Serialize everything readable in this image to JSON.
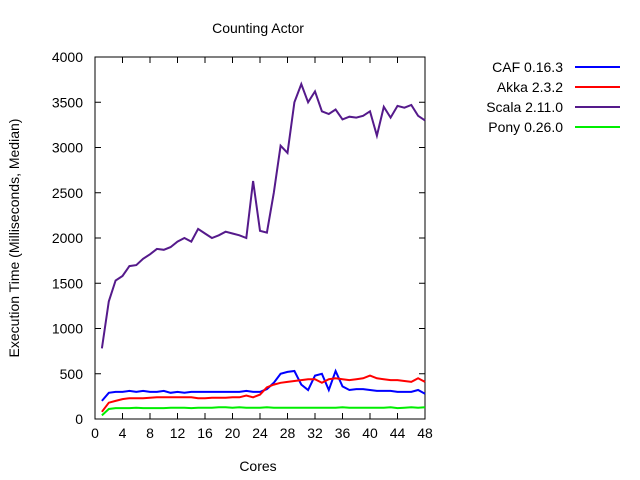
{
  "chart_data": {
    "type": "line",
    "title": "Counting Actor",
    "xlabel": "Cores",
    "ylabel": "Execution Time (Milliseconds, Median)",
    "xlim": [
      0,
      48
    ],
    "ylim": [
      0,
      4000
    ],
    "xticks": [
      0,
      4,
      8,
      12,
      16,
      20,
      24,
      28,
      32,
      36,
      40,
      44,
      48
    ],
    "yticks": [
      0,
      500,
      1000,
      1500,
      2000,
      2500,
      3000,
      3500,
      4000
    ],
    "legend_position": "outside-top-right",
    "x": [
      1,
      2,
      3,
      4,
      5,
      6,
      7,
      8,
      9,
      10,
      11,
      12,
      13,
      14,
      15,
      16,
      17,
      18,
      19,
      20,
      21,
      22,
      23,
      24,
      25,
      26,
      27,
      28,
      29,
      30,
      31,
      32,
      33,
      34,
      35,
      36,
      37,
      38,
      39,
      40,
      41,
      42,
      43,
      44,
      45,
      46,
      47,
      48
    ],
    "series": [
      {
        "name": "CAF 0.16.3",
        "color": "#0000ff",
        "values": [
          200,
          290,
          300,
          300,
          310,
          300,
          310,
          300,
          300,
          310,
          290,
          300,
          290,
          300,
          300,
          300,
          300,
          300,
          300,
          300,
          300,
          310,
          300,
          300,
          330,
          400,
          500,
          520,
          530,
          380,
          320,
          480,
          500,
          320,
          530,
          360,
          320,
          330,
          330,
          320,
          310,
          310,
          310,
          300,
          300,
          300,
          320,
          280
        ]
      },
      {
        "name": "Akka 2.3.2",
        "color": "#ff0000",
        "values": [
          80,
          180,
          200,
          220,
          230,
          230,
          230,
          235,
          240,
          240,
          240,
          240,
          240,
          240,
          230,
          230,
          235,
          235,
          235,
          240,
          240,
          260,
          240,
          270,
          350,
          380,
          400,
          410,
          420,
          430,
          440,
          440,
          400,
          440,
          450,
          440,
          430,
          440,
          450,
          480,
          450,
          440,
          430,
          430,
          420,
          410,
          450,
          410
        ]
      },
      {
        "name": "Scala 2.11.0",
        "color": "#551a8b",
        "values": [
          780,
          1300,
          1530,
          1580,
          1690,
          1700,
          1770,
          1820,
          1880,
          1870,
          1900,
          1960,
          2000,
          1960,
          2100,
          2050,
          2000,
          2030,
          2070,
          2050,
          2030,
          2000,
          2630,
          2080,
          2060,
          2500,
          3020,
          2940,
          3500,
          3700,
          3500,
          3620,
          3400,
          3370,
          3420,
          3310,
          3340,
          3330,
          3350,
          3400,
          3130,
          3450,
          3330,
          3460,
          3440,
          3470,
          3350,
          3300
        ]
      },
      {
        "name": "Pony 0.26.0",
        "color": "#00ee00",
        "values": [
          40,
          110,
          120,
          120,
          120,
          125,
          120,
          120,
          120,
          120,
          125,
          125,
          125,
          120,
          125,
          125,
          125,
          130,
          130,
          125,
          130,
          125,
          125,
          125,
          130,
          125,
          125,
          125,
          125,
          125,
          125,
          125,
          125,
          125,
          125,
          130,
          125,
          125,
          125,
          125,
          125,
          125,
          130,
          120,
          125,
          130,
          125,
          130
        ]
      }
    ]
  }
}
